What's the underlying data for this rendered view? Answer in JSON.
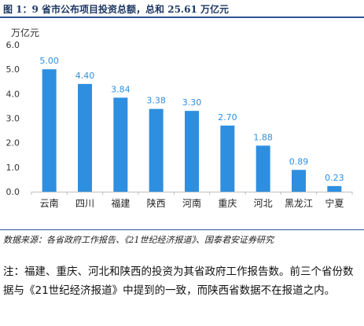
{
  "figure": {
    "title": "图 1：9 省市公布项目投资总额，总和 25.61 万亿元",
    "unit_label": "万亿元",
    "source": "数据来源：各省政府工作报告、《21世纪经济报道》、国泰君安证券研究",
    "note": "注：福建、重庆、河北和陕西的投资为其省政府工作报告数。前三个省份数据与《21世纪经济报道》中提到的一致，而陕西省数据不在报道之内。"
  },
  "colors": {
    "bar": "#2e8fe0",
    "label": "#2e8fe0",
    "axis": "#bfbfbf",
    "accent": "#2f5597"
  },
  "chart_data": {
    "type": "bar",
    "title": "9 省市公布项目投资总额，总和 25.61 万亿元",
    "ylabel": "万亿元",
    "xlabel": "",
    "categories": [
      "云南",
      "四川",
      "福建",
      "陕西",
      "河南",
      "重庆",
      "河北",
      "黑龙江",
      "宁夏"
    ],
    "values": [
      5.0,
      4.4,
      3.84,
      3.38,
      3.3,
      2.7,
      1.88,
      0.89,
      0.23
    ],
    "value_labels": [
      "5.00",
      "4.40",
      "3.84",
      "3.38",
      "3.30",
      "2.70",
      "1.88",
      "0.89",
      "0.23"
    ],
    "ylim": [
      0,
      6
    ],
    "yticks": [
      "0.0",
      "1.0",
      "2.0",
      "3.0",
      "4.0",
      "5.0",
      "6.0"
    ],
    "grid": false,
    "legend": "none"
  }
}
